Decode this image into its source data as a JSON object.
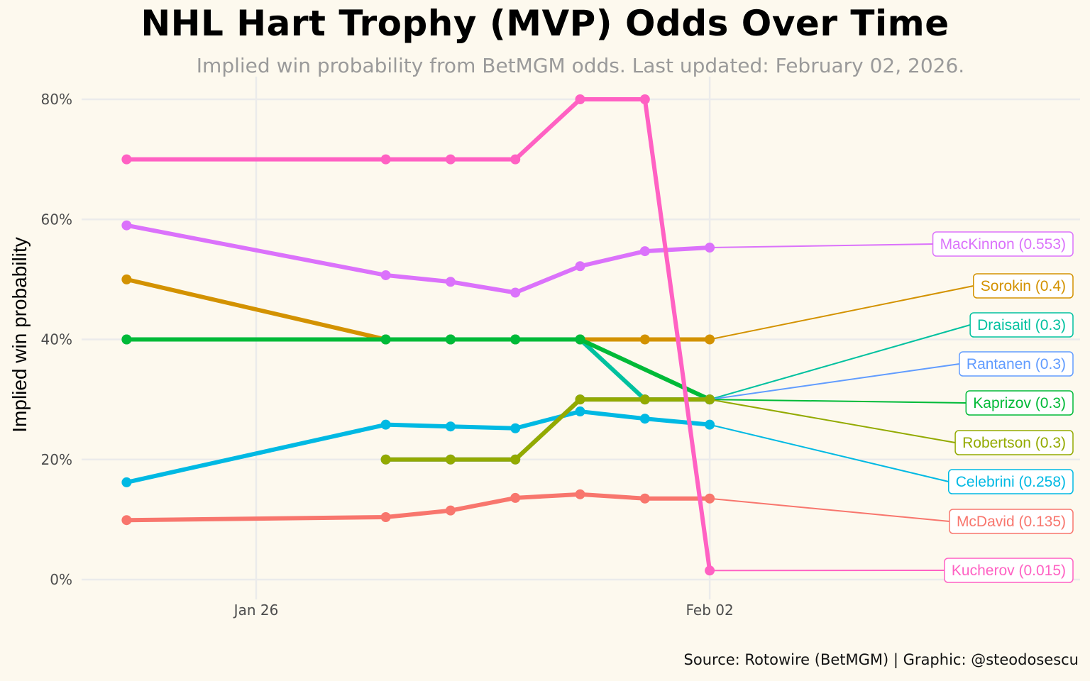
{
  "title": "NHL Hart Trophy (MVP) Odds Over Time",
  "subtitle": "Implied win probability from BetMGM odds. Last updated: February 02, 2026.",
  "caption": "Source: Rotowire (BetMGM) | Graphic: @steodosescu",
  "background": "#FDF9EE",
  "chart_data": {
    "type": "line",
    "title": "NHL Hart Trophy (MVP) Odds Over Time",
    "xlabel": "",
    "ylabel": "Implied win probability",
    "ylim": [
      0,
      0.8
    ],
    "yticks": [
      0,
      0.2,
      0.4,
      0.6,
      0.8
    ],
    "ytick_labels": [
      "0%",
      "20%",
      "40%",
      "60%",
      "80%"
    ],
    "x_dates": [
      "Jan 24",
      "Jan 28",
      "Jan 29",
      "Jan 30",
      "Jan 31",
      "Feb 01",
      "Feb 02"
    ],
    "x_day_offsets": [
      -2,
      2,
      3,
      4,
      5,
      6,
      7
    ],
    "xticks": [
      {
        "label": "Jan 26",
        "day": 0
      },
      {
        "label": "Feb 02",
        "day": 7
      }
    ],
    "grid": true,
    "legend": "direct labels at right",
    "series": [
      {
        "name": "Kucherov",
        "color": "#FF61C3",
        "label": "Kucherov (0.015)",
        "points": [
          [
            -2,
            0.7
          ],
          [
            2,
            0.7
          ],
          [
            3,
            0.7
          ],
          [
            4,
            0.7
          ],
          [
            5,
            0.8
          ],
          [
            6,
            0.8
          ],
          [
            7,
            0.015
          ]
        ]
      },
      {
        "name": "MacKinnon",
        "color": "#DB72FB",
        "label": "MacKinnon (0.553)",
        "points": [
          [
            -2,
            0.59
          ],
          [
            2,
            0.507
          ],
          [
            3,
            0.496
          ],
          [
            4,
            0.478
          ],
          [
            5,
            0.522
          ],
          [
            6,
            0.547
          ],
          [
            7,
            0.553
          ]
        ]
      },
      {
        "name": "Sorokin",
        "color": "#D39200",
        "label": "Sorokin (0.4)",
        "points": [
          [
            -2,
            0.5
          ],
          [
            2,
            0.4
          ],
          [
            3,
            0.4
          ],
          [
            4,
            0.4
          ],
          [
            5,
            0.4
          ],
          [
            6,
            0.4
          ],
          [
            7,
            0.4
          ]
        ]
      },
      {
        "name": "Kaprizov",
        "color": "#00BA38",
        "label": "Kaprizov (0.3)",
        "points": [
          [
            -2,
            0.4
          ],
          [
            2,
            0.4
          ],
          [
            3,
            0.4
          ],
          [
            4,
            0.4
          ],
          [
            5,
            0.4
          ],
          [
            7,
            0.3
          ]
        ]
      },
      {
        "name": "Draisaitl",
        "color": "#00C19F",
        "label": "Draisaitl (0.3)",
        "points": [
          [
            -2,
            0.4
          ],
          [
            2,
            0.4
          ],
          [
            3,
            0.4
          ],
          [
            4,
            0.4
          ],
          [
            5,
            0.4
          ],
          [
            6,
            0.3
          ],
          [
            7,
            0.3
          ]
        ]
      },
      {
        "name": "Celebrini",
        "color": "#00B9E3",
        "label": "Celebrini (0.258)",
        "points": [
          [
            -2,
            0.162
          ],
          [
            2,
            0.258
          ],
          [
            3,
            0.255
          ],
          [
            4,
            0.252
          ],
          [
            5,
            0.28
          ],
          [
            6,
            0.268
          ],
          [
            7,
            0.258
          ]
        ]
      },
      {
        "name": "Rantanen",
        "color": "#619CFF",
        "label": "Rantanen (0.3)",
        "points": [
          [
            2,
            0.2
          ],
          [
            3,
            0.2
          ],
          [
            4,
            0.2
          ],
          [
            5,
            0.3
          ],
          [
            6,
            0.3
          ],
          [
            7,
            0.3
          ]
        ]
      },
      {
        "name": "Robertson",
        "color": "#93AA00",
        "label": "Robertson (0.3)",
        "points": [
          [
            2,
            0.2
          ],
          [
            3,
            0.2
          ],
          [
            4,
            0.2
          ],
          [
            5,
            0.3
          ],
          [
            6,
            0.3
          ],
          [
            7,
            0.3
          ]
        ]
      },
      {
        "name": "McDavid",
        "color": "#F8766D",
        "label": "McDavid (0.135)",
        "points": [
          [
            -2,
            0.099
          ],
          [
            2,
            0.104
          ],
          [
            3,
            0.115
          ],
          [
            4,
            0.136
          ],
          [
            5,
            0.142
          ],
          [
            6,
            0.135
          ],
          [
            7,
            0.135
          ]
        ]
      }
    ],
    "label_order_top_to_bottom": [
      "MacKinnon",
      "Sorokin",
      "Draisaitl",
      "Rantanen",
      "Kaprizov",
      "Robertson",
      "Celebrini",
      "McDavid",
      "Kucherov"
    ]
  }
}
